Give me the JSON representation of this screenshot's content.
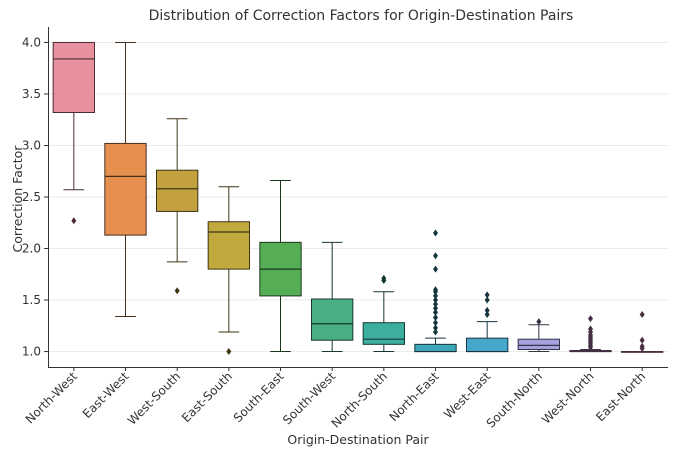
{
  "chart_data": {
    "type": "box",
    "title": "Distribution of Correction Factors for Origin-Destination Pairs",
    "xlabel": "Origin-Destination Pair",
    "ylabel": "Correction Factor",
    "ylim": [
      0.85,
      4.15
    ],
    "yticks": [
      1.0,
      1.5,
      2.0,
      2.5,
      3.0,
      3.5,
      4.0
    ],
    "grid": true,
    "categories": [
      "North-West",
      "East-West",
      "West-South",
      "East-South",
      "South-East",
      "South-West",
      "North-South",
      "North-East",
      "West-East",
      "South-North",
      "West-North",
      "East-North"
    ],
    "boxes": [
      {
        "q1": 3.32,
        "median": 3.84,
        "q3": 4.0,
        "whisker_low": 2.57,
        "whisker_high": 4.0,
        "outliers": [
          2.27
        ]
      },
      {
        "q1": 2.13,
        "median": 2.7,
        "q3": 3.02,
        "whisker_low": 1.34,
        "whisker_high": 4.0,
        "outliers": []
      },
      {
        "q1": 2.36,
        "median": 2.58,
        "q3": 2.76,
        "whisker_low": 1.87,
        "whisker_high": 3.26,
        "outliers": [
          1.59
        ]
      },
      {
        "q1": 1.8,
        "median": 2.16,
        "q3": 2.26,
        "whisker_low": 1.19,
        "whisker_high": 2.6,
        "outliers": [
          1.0
        ]
      },
      {
        "q1": 1.54,
        "median": 1.8,
        "q3": 2.06,
        "whisker_low": 1.0,
        "whisker_high": 2.66,
        "outliers": []
      },
      {
        "q1": 1.11,
        "median": 1.27,
        "q3": 1.51,
        "whisker_low": 1.0,
        "whisker_high": 2.06,
        "outliers": []
      },
      {
        "q1": 1.07,
        "median": 1.12,
        "q3": 1.28,
        "whisker_low": 1.0,
        "whisker_high": 1.58,
        "outliers": [
          1.69,
          1.71
        ]
      },
      {
        "q1": 1.0,
        "median": 1.0,
        "q3": 1.07,
        "whisker_low": 1.0,
        "whisker_high": 1.13,
        "outliers": [
          1.19,
          1.23,
          1.28,
          1.33,
          1.38,
          1.42,
          1.46,
          1.5,
          1.54,
          1.58,
          1.6,
          1.8,
          1.93,
          2.15
        ]
      },
      {
        "q1": 1.0,
        "median": 1.0,
        "q3": 1.13,
        "whisker_low": 1.0,
        "whisker_high": 1.29,
        "outliers": [
          1.36,
          1.4,
          1.5,
          1.55
        ]
      },
      {
        "q1": 1.02,
        "median": 1.06,
        "q3": 1.12,
        "whisker_low": 1.0,
        "whisker_high": 1.26,
        "outliers": [
          1.29
        ]
      },
      {
        "q1": 1.0,
        "median": 1.0,
        "q3": 1.01,
        "whisker_low": 1.0,
        "whisker_high": 1.02,
        "outliers": [
          1.04,
          1.06,
          1.08,
          1.1,
          1.12,
          1.14,
          1.16,
          1.19,
          1.22,
          1.32
        ]
      },
      {
        "q1": 1.0,
        "median": 1.0,
        "q3": 1.0,
        "whisker_low": 1.0,
        "whisker_high": 1.0,
        "outliers": [
          1.03,
          1.05,
          1.11,
          1.36
        ]
      }
    ],
    "colors": [
      "#e8919e",
      "#e5904f",
      "#c3a13f",
      "#c2a93d",
      "#55ad55",
      "#49ae82",
      "#3caf9e",
      "#3da7b9",
      "#47a7cb",
      "#a7a2df",
      "#d094d4",
      "#e38fc6"
    ]
  }
}
